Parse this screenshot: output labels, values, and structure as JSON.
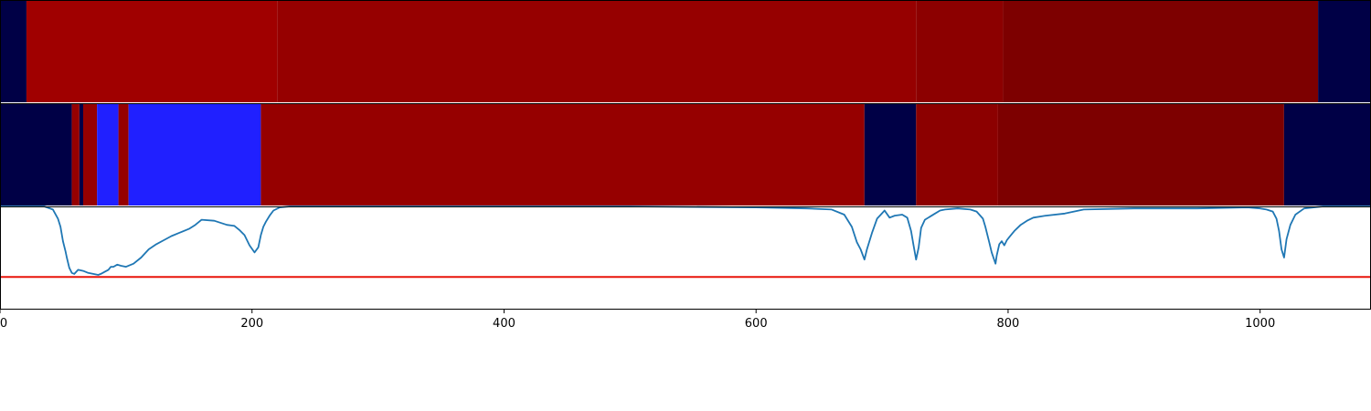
{
  "chart_data": [
    {
      "type": "heatmap",
      "colors": {
        "dark": "#000046",
        "red_a": "#a00000",
        "red_b": "#960000",
        "red_c": "#8c0000",
        "red_d": "#7d0000"
      },
      "segments": [
        {
          "x0": 0,
          "x1": 21,
          "color": "#000046"
        },
        {
          "x0": 21,
          "x1": 220,
          "color": "#a00000"
        },
        {
          "x0": 220,
          "x1": 727,
          "color": "#960000"
        },
        {
          "x0": 727,
          "x1": 796,
          "color": "#8c0000"
        },
        {
          "x0": 796,
          "x1": 1046,
          "color": "#7d0000"
        },
        {
          "x0": 1046,
          "x1": 1088,
          "color": "#000046"
        }
      ]
    },
    {
      "type": "heatmap",
      "colors": {
        "dark": "#000046",
        "red": "#960000",
        "blue": "#2020ff",
        "red_c": "#8c0000",
        "red_d": "#7d0000"
      },
      "segments": [
        {
          "x0": 0,
          "x1": 57,
          "color": "#000046"
        },
        {
          "x0": 57,
          "x1": 63,
          "color": "#960000"
        },
        {
          "x0": 63,
          "x1": 66,
          "color": "#000046"
        },
        {
          "x0": 66,
          "x1": 77,
          "color": "#960000"
        },
        {
          "x0": 77,
          "x1": 94,
          "color": "#2020ff"
        },
        {
          "x0": 94,
          "x1": 102,
          "color": "#960000"
        },
        {
          "x0": 102,
          "x1": 207,
          "color": "#2020ff"
        },
        {
          "x0": 207,
          "x1": 686,
          "color": "#960000"
        },
        {
          "x0": 686,
          "x1": 727,
          "color": "#000046"
        },
        {
          "x0": 727,
          "x1": 792,
          "color": "#8c0000"
        },
        {
          "x0": 792,
          "x1": 1019,
          "color": "#7d0000"
        },
        {
          "x0": 1019,
          "x1": 1088,
          "color": "#000046"
        }
      ]
    },
    {
      "type": "line",
      "xlim": [
        0,
        1088
      ],
      "ylim": [
        0,
        1
      ],
      "xticks": [
        0,
        200,
        400,
        600,
        800,
        1000
      ],
      "xtick_labels": [
        "0",
        "200",
        "400",
        "600",
        "800",
        "1000"
      ],
      "threshold": {
        "y": 0.31,
        "color": "#e8140a"
      },
      "series": [
        {
          "color": "#1f77b4",
          "x": [
            0,
            35,
            42,
            46,
            48,
            50,
            52,
            53,
            55,
            57,
            59,
            62,
            66,
            70,
            74,
            78,
            80,
            83,
            86,
            88,
            90,
            93,
            96,
            100,
            106,
            112,
            118,
            124,
            130,
            136,
            142,
            150,
            155,
            160,
            170,
            180,
            186,
            190,
            194,
            198,
            202,
            205,
            207,
            209,
            211,
            214,
            217,
            222,
            230,
            240,
            260,
            300,
            400,
            500,
            600,
            640,
            660,
            670,
            676,
            680,
            683,
            686,
            688,
            692,
            696,
            699,
            702,
            706,
            710,
            716,
            720,
            723,
            725,
            727,
            729,
            731,
            734,
            738,
            742,
            746,
            750,
            760,
            770,
            775,
            780,
            782,
            785,
            787,
            790,
            791,
            793,
            795,
            797,
            799,
            801,
            805,
            810,
            815,
            820,
            830,
            845,
            860,
            900,
            950,
            990,
            1000,
            1005,
            1010,
            1013,
            1015,
            1017,
            1019,
            1021,
            1024,
            1028,
            1035,
            1050,
            1088
          ],
          "y": [
            1.0,
            1.0,
            0.97,
            0.88,
            0.8,
            0.66,
            0.56,
            0.5,
            0.4,
            0.35,
            0.34,
            0.38,
            0.37,
            0.35,
            0.34,
            0.33,
            0.34,
            0.36,
            0.38,
            0.41,
            0.41,
            0.43,
            0.42,
            0.41,
            0.44,
            0.5,
            0.58,
            0.63,
            0.67,
            0.71,
            0.74,
            0.78,
            0.82,
            0.87,
            0.86,
            0.82,
            0.81,
            0.77,
            0.72,
            0.62,
            0.55,
            0.6,
            0.72,
            0.8,
            0.85,
            0.91,
            0.96,
            0.99,
            1.0,
            1.0,
            1.0,
            1.0,
            1.0,
            1.0,
            0.99,
            0.98,
            0.97,
            0.92,
            0.8,
            0.65,
            0.58,
            0.48,
            0.58,
            0.74,
            0.88,
            0.92,
            0.96,
            0.89,
            0.91,
            0.92,
            0.89,
            0.76,
            0.62,
            0.48,
            0.6,
            0.79,
            0.87,
            0.9,
            0.93,
            0.96,
            0.97,
            0.98,
            0.97,
            0.95,
            0.88,
            0.8,
            0.65,
            0.55,
            0.44,
            0.52,
            0.63,
            0.66,
            0.62,
            0.67,
            0.7,
            0.76,
            0.82,
            0.86,
            0.89,
            0.91,
            0.93,
            0.97,
            0.98,
            0.98,
            0.99,
            0.98,
            0.97,
            0.95,
            0.88,
            0.76,
            0.58,
            0.5,
            0.68,
            0.82,
            0.92,
            0.98,
            1.0,
            1.0
          ]
        }
      ]
    }
  ]
}
